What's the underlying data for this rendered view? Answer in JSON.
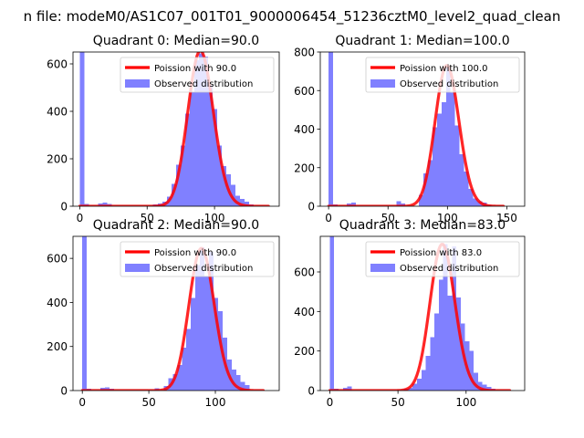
{
  "figure": {
    "suptitle": "n file: modeM0/AS1C07_001T01_9000006454_51236cztM0_level2_quad_clean"
  },
  "colors": {
    "observed": "#8080ff",
    "poisson": "#ff0000",
    "axes": "#000000",
    "background": "#ffffff"
  },
  "chart_data": [
    {
      "type": "bar",
      "title": "Quadrant 0: Median=90.0",
      "xlabel": "",
      "ylabel": "",
      "xlim": [
        -5,
        148
      ],
      "ylim": [
        0,
        650
      ],
      "xticks": [
        0,
        50,
        100
      ],
      "yticks": [
        0,
        200,
        400,
        600
      ],
      "legend_position": "top-right",
      "poisson_mean": 90,
      "poisson_peak": 655,
      "series": [
        {
          "name": "Poission with 90.0",
          "kind": "line"
        },
        {
          "name": "Observed distribution",
          "kind": "histogram",
          "bin_width": 3.4,
          "x": [
            0,
            3.4,
            13.6,
            17,
            20.4,
            54.4,
            57.8,
            61.2,
            64.6,
            68,
            71.4,
            74.8,
            78.2,
            81.6,
            85,
            88.4,
            91.8,
            95.2,
            98.6,
            102,
            105.4,
            108.8,
            112.2,
            115.6,
            119,
            122.4,
            125.8
          ],
          "values": [
            650,
            10,
            12,
            15,
            10,
            8,
            12,
            20,
            40,
            95,
            175,
            255,
            390,
            480,
            615,
            645,
            630,
            510,
            410,
            255,
            170,
            135,
            90,
            45,
            30,
            20,
            8
          ]
        }
      ]
    },
    {
      "type": "bar",
      "title": "Quadrant 1: Median=100.0",
      "xlabel": "",
      "ylabel": "",
      "xlim": [
        -7,
        165
      ],
      "ylim": [
        0,
        800
      ],
      "xticks": [
        0,
        50,
        100,
        150
      ],
      "yticks": [
        0,
        200,
        400,
        600,
        800
      ],
      "legend_position": "top-right",
      "poisson_mean": 100,
      "poisson_peak": 730,
      "series": [
        {
          "name": "Poission with 100.0",
          "kind": "line"
        },
        {
          "name": "Observed distribution",
          "kind": "histogram",
          "bin_width": 3.8,
          "x": [
            0,
            3.8,
            15.2,
            19,
            57,
            60.8,
            76,
            79.8,
            83.6,
            87.4,
            91.2,
            95,
            98.8,
            102.6,
            106.4,
            110.2,
            114,
            117.8,
            121.6,
            125.4,
            129.2,
            133
          ],
          "values": [
            800,
            10,
            15,
            18,
            25,
            15,
            60,
            170,
            240,
            410,
            480,
            540,
            720,
            590,
            420,
            270,
            180,
            90,
            40,
            25,
            18,
            8
          ]
        }
      ]
    },
    {
      "type": "bar",
      "title": "Quadrant 2: Median=90.0",
      "xlabel": "",
      "ylabel": "",
      "xlim": [
        -7,
        148
      ],
      "ylim": [
        0,
        700
      ],
      "xticks": [
        0,
        50,
        100
      ],
      "yticks": [
        0,
        200,
        400,
        600
      ],
      "legend_position": "top-right",
      "poisson_mean": 90,
      "poisson_peak": 645,
      "series": [
        {
          "name": "Poission with 90.0",
          "kind": "line"
        },
        {
          "name": "Observed distribution",
          "kind": "histogram",
          "bin_width": 3.4,
          "x": [
            0,
            3.4,
            13.6,
            17,
            20.4,
            54.4,
            61.2,
            64.6,
            68,
            71.4,
            74.8,
            78.2,
            81.6,
            85,
            88.4,
            91.8,
            95.2,
            98.6,
            102,
            105.4,
            108.8,
            112.2,
            115.6,
            119,
            122.4
          ],
          "values": [
            700,
            8,
            12,
            15,
            8,
            10,
            20,
            55,
            75,
            115,
            195,
            280,
            420,
            570,
            650,
            520,
            630,
            420,
            360,
            240,
            140,
            95,
            70,
            40,
            25
          ]
        }
      ]
    },
    {
      "type": "bar",
      "title": "Quadrant 3: Median=83.0",
      "xlabel": "",
      "ylabel": "",
      "xlim": [
        -7,
        143
      ],
      "ylim": [
        0,
        780
      ],
      "xticks": [
        0,
        50,
        100
      ],
      "yticks": [
        0,
        200,
        400,
        600
      ],
      "legend_position": "top-right",
      "poisson_mean": 83,
      "poisson_peak": 740,
      "series": [
        {
          "name": "Poission with 83.0",
          "kind": "line"
        },
        {
          "name": "Observed distribution",
          "kind": "histogram",
          "bin_width": 3.2,
          "x": [
            0,
            3.2,
            9.6,
            12.8,
            54.4,
            57.6,
            60.8,
            64,
            67.2,
            70.4,
            73.6,
            76.8,
            80,
            83.2,
            86.4,
            89.6,
            92.8,
            96,
            99.2,
            102.4,
            105.6,
            108.8,
            112,
            115.2,
            118.4
          ],
          "values": [
            780,
            10,
            15,
            20,
            10,
            15,
            35,
            60,
            105,
            175,
            270,
            390,
            560,
            740,
            480,
            730,
            470,
            340,
            250,
            200,
            90,
            45,
            30,
            18,
            10
          ]
        }
      ]
    }
  ]
}
